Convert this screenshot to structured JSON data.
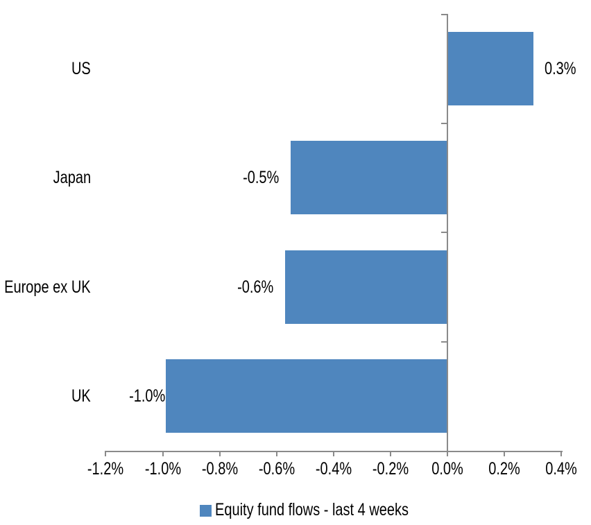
{
  "chart_data": {
    "type": "bar",
    "orientation": "horizontal",
    "title": "",
    "xlabel": "",
    "ylabel": "",
    "categories": [
      "US",
      "Japan",
      "Europe ex UK",
      "UK"
    ],
    "series": [
      {
        "name": "Equity fund flows - last 4 weeks",
        "values": [
          0.3,
          -0.5,
          -0.6,
          -1.0
        ],
        "values_precise_pct": [
          0.3,
          -0.55,
          -0.57,
          -0.99
        ],
        "data_labels": [
          "0.3%",
          "-0.5%",
          "-0.6%",
          "-1.0%"
        ]
      }
    ],
    "x_axis": {
      "min": -1.2,
      "max": 0.4,
      "tick_values": [
        -1.2,
        -1.0,
        -0.8,
        -0.6,
        -0.4,
        -0.2,
        0.0,
        0.2,
        0.4
      ],
      "tick_labels": [
        "-1.2%",
        "-1.0%",
        "-0.8%",
        "-0.6%",
        "-0.4%",
        "-0.2%",
        "0.0%",
        "0.2%",
        "0.4%"
      ]
    },
    "grid": false,
    "legend": {
      "position": "bottom",
      "entries": [
        "Equity fund flows - last 4 weeks"
      ]
    },
    "colors": {
      "bar": "#4F86BE",
      "axis": "#8A8A8A",
      "text": "#000000",
      "background": "#FFFFFF"
    }
  }
}
